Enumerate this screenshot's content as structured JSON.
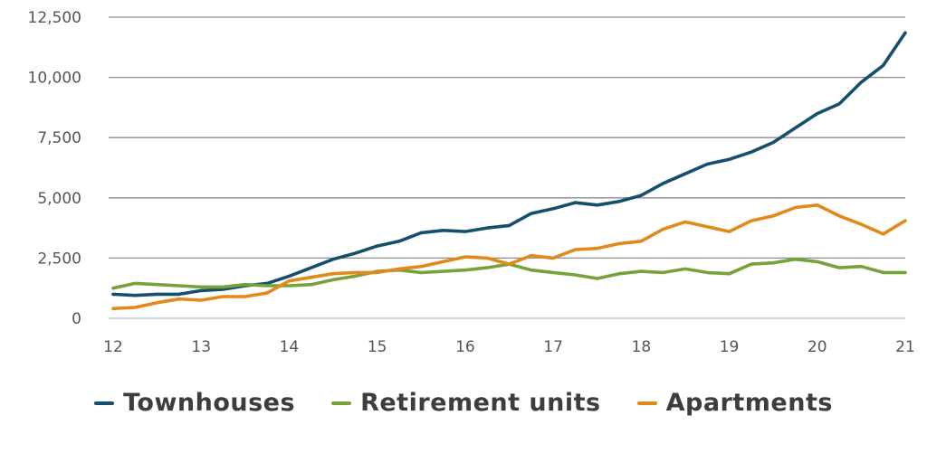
{
  "chart_data": {
    "type": "line",
    "title": "",
    "xlabel": "",
    "ylabel": "",
    "xlim": [
      12,
      21
    ],
    "ylim": [
      0,
      12500
    ],
    "x_ticks": [
      "12",
      "13",
      "14",
      "15",
      "16",
      "17",
      "18",
      "19",
      "20",
      "21"
    ],
    "y_ticks": [
      "0",
      "2,500",
      "5,000",
      "7,500",
      "10,000",
      "12,500"
    ],
    "grid": "horizontal",
    "legend_position": "bottom",
    "series": [
      {
        "name": "Townhouses",
        "color": "#14506e",
        "x": [
          12,
          12.25,
          12.5,
          12.75,
          13,
          13.25,
          13.5,
          13.75,
          14,
          14.25,
          14.5,
          14.75,
          15,
          15.25,
          15.5,
          15.75,
          16,
          16.25,
          16.5,
          16.75,
          17,
          17.25,
          17.5,
          17.75,
          18,
          18.25,
          18.5,
          18.75,
          19,
          19.25,
          19.5,
          19.75,
          20,
          20.25,
          20.5,
          20.75,
          21
        ],
        "values": [
          1000,
          950,
          1000,
          1000,
          1150,
          1200,
          1350,
          1450,
          1750,
          2100,
          2450,
          2700,
          3000,
          3200,
          3550,
          3650,
          3600,
          3750,
          3850,
          4350,
          4550,
          4800,
          4700,
          4850,
          5100,
          5600,
          6000,
          6400,
          6600,
          6900,
          7300,
          7900,
          8500,
          8900,
          9800,
          10500,
          11850
        ]
      },
      {
        "name": "Retirement units",
        "color": "#76a23a",
        "x": [
          12,
          12.25,
          12.5,
          12.75,
          13,
          13.25,
          13.5,
          13.75,
          14,
          14.25,
          14.5,
          14.75,
          15,
          15.25,
          15.5,
          15.75,
          16,
          16.25,
          16.5,
          16.75,
          17,
          17.25,
          17.5,
          17.75,
          18,
          18.25,
          18.5,
          18.75,
          19,
          19.25,
          19.5,
          19.75,
          20,
          20.25,
          20.5,
          20.75,
          21
        ],
        "values": [
          1250,
          1450,
          1400,
          1350,
          1300,
          1300,
          1400,
          1350,
          1350,
          1400,
          1600,
          1750,
          1950,
          2000,
          1900,
          1950,
          2000,
          2100,
          2250,
          2000,
          1900,
          1800,
          1650,
          1850,
          1950,
          1900,
          2050,
          1900,
          1850,
          2250,
          2300,
          2450,
          2350,
          2100,
          2150,
          1900,
          1900
        ]
      },
      {
        "name": "Apartments",
        "color": "#e2891b",
        "x": [
          12,
          12.25,
          12.5,
          12.75,
          13,
          13.25,
          13.5,
          13.75,
          14,
          14.25,
          14.5,
          14.75,
          15,
          15.25,
          15.5,
          15.75,
          16,
          16.25,
          16.5,
          16.75,
          17,
          17.25,
          17.5,
          17.75,
          18,
          18.25,
          18.5,
          18.75,
          19,
          19.25,
          19.5,
          19.75,
          20,
          20.25,
          20.5,
          20.75,
          21
        ],
        "values": [
          400,
          450,
          650,
          800,
          750,
          900,
          900,
          1050,
          1550,
          1700,
          1850,
          1900,
          1900,
          2050,
          2150,
          2350,
          2550,
          2500,
          2250,
          2600,
          2500,
          2850,
          2900,
          3100,
          3200,
          3700,
          4000,
          3800,
          3600,
          4050,
          4250,
          4600,
          4700,
          4250,
          3900,
          3500,
          4050
        ]
      }
    ]
  }
}
